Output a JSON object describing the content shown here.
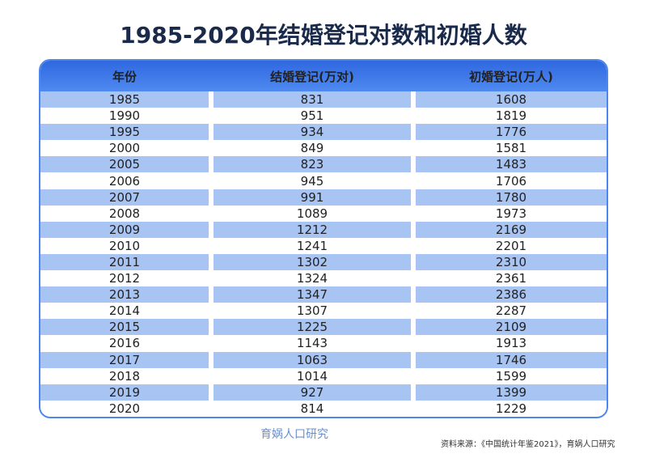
{
  "header": {
    "title": "1985-2020年结婚登记对数和初婚人数"
  },
  "table": {
    "columns": [
      "年份",
      "结婚登记(万对)",
      "初婚登记(万人)"
    ],
    "rows": [
      [
        "1985",
        831,
        1608
      ],
      [
        "1990",
        951,
        1819
      ],
      [
        "1995",
        934,
        1776
      ],
      [
        "2000",
        849,
        1581
      ],
      [
        "2005",
        823,
        1483
      ],
      [
        "2006",
        945,
        1706
      ],
      [
        "2007",
        991,
        1780
      ],
      [
        "2008",
        1089,
        1973
      ],
      [
        "2009",
        1212,
        2169
      ],
      [
        "2010",
        1241,
        2201
      ],
      [
        "2011",
        1302,
        2310
      ],
      [
        "2012",
        1324,
        2361
      ],
      [
        "2013",
        1347,
        2386
      ],
      [
        "2014",
        1307,
        2287
      ],
      [
        "2015",
        1225,
        2109
      ],
      [
        "2016",
        1143,
        1913
      ],
      [
        "2017",
        1063,
        1746
      ],
      [
        "2018",
        1014,
        1599
      ],
      [
        "2019",
        927,
        1399
      ],
      [
        "2020",
        814,
        1229
      ]
    ]
  },
  "footer": {
    "logo": "育娲人口研究",
    "source": "资料来源：《中国统计年鉴2021》，育娲人口研究"
  }
}
